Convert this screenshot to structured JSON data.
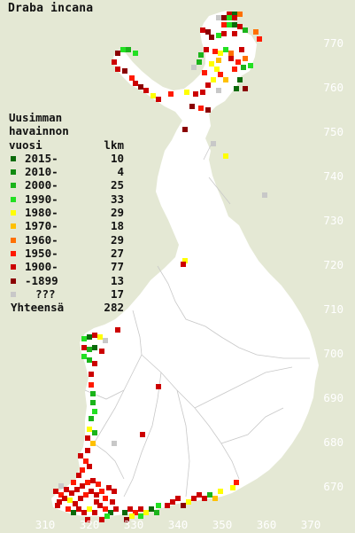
{
  "title": "Draba incana",
  "legend": {
    "header_line1": "Uusimman",
    "header_line2": "havainnon",
    "header_line3": "vuosi",
    "header_count": "lkm",
    "rows": [
      {
        "label": "2015-",
        "count": "10",
        "color": "#0a6a0a"
      },
      {
        "label": "2010-",
        "count": "4",
        "color": "#108a10"
      },
      {
        "label": "2000-",
        "count": "25",
        "color": "#1ab41a"
      },
      {
        "label": "1990-",
        "count": "33",
        "color": "#22e022"
      },
      {
        "label": "1980-",
        "count": "29",
        "color": "#ffff00"
      },
      {
        "label": "1970-",
        "count": "18",
        "color": "#ffc000"
      },
      {
        "label": "1960-",
        "count": "29",
        "color": "#ff7000"
      },
      {
        "label": "1950-",
        "count": "27",
        "color": "#ff1a00"
      },
      {
        "label": "1900-",
        "count": "77",
        "color": "#cc0000"
      },
      {
        "label": "-1899",
        "count": "13",
        "color": "#8a0000"
      },
      {
        "label": "???",
        "count": "17",
        "color": "#c8c8c8"
      }
    ],
    "total_label": "Yhteensä",
    "total_count": "282"
  },
  "y_axis_labels": [
    "770",
    "760",
    "750",
    "740",
    "730",
    "720",
    "710",
    "700",
    "690",
    "680",
    "670"
  ],
  "x_axis_labels": [
    "310",
    "320",
    "330",
    "340",
    "350",
    "360",
    "370"
  ],
  "colors": {
    "background": "#e4e8d4",
    "land": "#ffffff",
    "borders": "#c0c0c0"
  }
}
